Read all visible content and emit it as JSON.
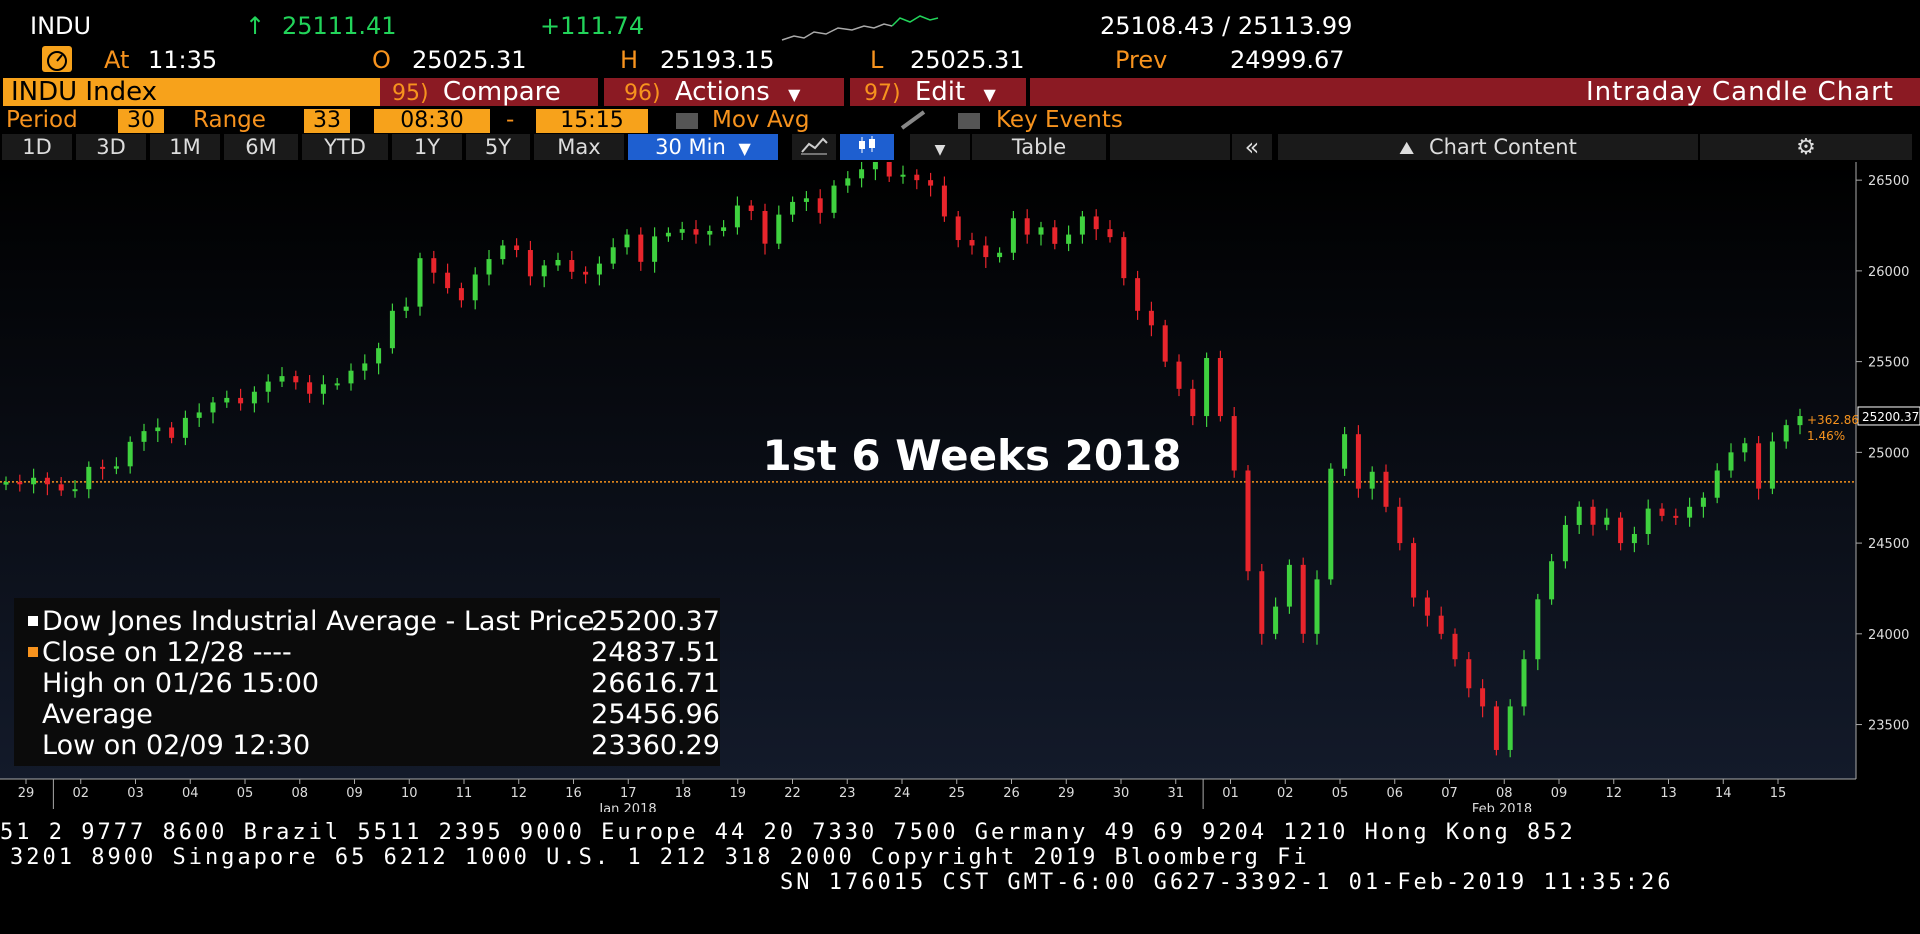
{
  "header": {
    "ticker": "INDU",
    "arrow": "↑",
    "last": "25111.41",
    "change": "+111.74",
    "bid_ask": "25108.43 / 25113.99",
    "at_label": "At",
    "time": "11:35",
    "open_label": "O",
    "open": "25025.31",
    "high_label": "H",
    "high": "25193.15",
    "low_label": "L",
    "low": "25025.31",
    "prev_label": "Prev",
    "prev": "24999.67"
  },
  "menu": {
    "security": "INDU Index",
    "compare_num": "95)",
    "compare": "Compare",
    "actions_num": "96)",
    "actions": "Actions",
    "edit_num": "97)",
    "edit": "Edit",
    "title": "Intraday Candle Chart"
  },
  "params": {
    "period_label": "Period",
    "period": "30",
    "range_label": "Range",
    "range": "33",
    "start": "08:30",
    "dash": "-",
    "end": "15:15",
    "mov_avg": "Mov Avg",
    "key_events": "Key Events"
  },
  "toolbar": {
    "ranges": [
      "1D",
      "3D",
      "1M",
      "6M",
      "YTD",
      "1Y",
      "5Y",
      "Max"
    ],
    "interval": "30 Min",
    "table": "Table",
    "chart_content": "Chart Content"
  },
  "colors": {
    "up": "#3fd13f",
    "down": "#e8252c",
    "close_line": "#f7931e",
    "menu_orange": "#f7a21b",
    "menu_red": "#8b1a23",
    "toolbar_selected": "#1e5fd0"
  },
  "chart_data": {
    "type": "candlestick",
    "title": "1st 6 Weeks 2018",
    "ylim": [
      23200,
      26600
    ],
    "yticks": [
      23500,
      24000,
      24500,
      25000,
      25500,
      26000,
      26500
    ],
    "yticklabels": [
      "23500",
      "24000",
      "24500",
      "25000",
      "25500",
      "26000",
      "26500"
    ],
    "xticklabels": [
      "29",
      "02",
      "03",
      "04",
      "05",
      "08",
      "09",
      "10",
      "11",
      "12",
      "16",
      "17",
      "18",
      "19",
      "22",
      "23",
      "24",
      "25",
      "26",
      "29",
      "30",
      "31",
      "01",
      "02",
      "05",
      "06",
      "07",
      "08",
      "09",
      "12",
      "13",
      "14",
      "15"
    ],
    "month_labels": [
      "Jan 2018",
      "Feb 2018"
    ],
    "reference_line": 24837.51,
    "last_price_label": "25200.37",
    "change_label": "+362.86",
    "change_pct_label": "1.46%",
    "series": [
      {
        "name": "Dow Jones Industrial Average - Last Price",
        "closes": [
          24837,
          24824,
          24860,
          24824,
          24790,
          24797,
          24920,
          24910,
          24923,
          25058,
          25117,
          25137,
          25080,
          25190,
          25220,
          25275,
          25300,
          25270,
          25334,
          25390,
          25420,
          25386,
          25323,
          25375,
          25380,
          25450,
          25490,
          25574,
          25780,
          25803,
          26070,
          25990,
          25905,
          25838,
          25980,
          26065,
          26140,
          26115,
          25970,
          26030,
          26060,
          25995,
          25980,
          26040,
          26130,
          26200,
          26050,
          26190,
          26210,
          26230,
          26200,
          26220,
          26240,
          26360,
          26330,
          26150,
          26310,
          26380,
          26400,
          26320,
          26470,
          26510,
          26560,
          26616,
          26520,
          26530,
          26500,
          26470,
          26300,
          26170,
          26140,
          26076,
          26100,
          26290,
          26200,
          26240,
          26149,
          26200,
          26300,
          26230,
          26186,
          25960,
          25780,
          25700,
          25500,
          25350,
          25200,
          25520,
          25200,
          24900,
          24345,
          24000,
          24150,
          24380,
          24000,
          24300,
          24910,
          25100,
          24800,
          24893,
          24700,
          24500,
          24200,
          24100,
          24000,
          23860,
          23700,
          23600,
          23360,
          23600,
          23860,
          24190,
          24400,
          24600,
          24700,
          24601,
          24640,
          24500,
          24550,
          24690,
          24650,
          24640,
          24700,
          24750,
          24900,
          25000,
          25050,
          24800,
          25060,
          25150,
          25200
        ]
      },
      {
        "name": "Close on 12/28 ----",
        "value": 24837.51
      }
    ]
  },
  "legend": {
    "rows": [
      {
        "label": "Dow Jones Industrial Average - Last Price",
        "value": "25200.37"
      },
      {
        "label": "Close on 12/28 ----",
        "value": "24837.51"
      },
      {
        "label": "High on 01/26 15:00",
        "value": "26616.71"
      },
      {
        "label": "Average",
        "value": "25456.96"
      },
      {
        "label": "Low on 02/09 12:30",
        "value": "23360.29"
      }
    ]
  },
  "footer": {
    "line1": "51 2 9777 8600 Brazil 5511 2395 9000 Europe 44 20 7330 7500 Germany 49 69 9204 1210 Hong Kong 852",
    "line2": "3201 8900       Singapore 65 6212 1000       U.S. 1 212 318 2000        Copyright 2019 Bloomberg Fi",
    "line3": "SN 176015 CST  GMT-6:00 G627-3392-1 01-Feb-2019 11:35:26"
  }
}
